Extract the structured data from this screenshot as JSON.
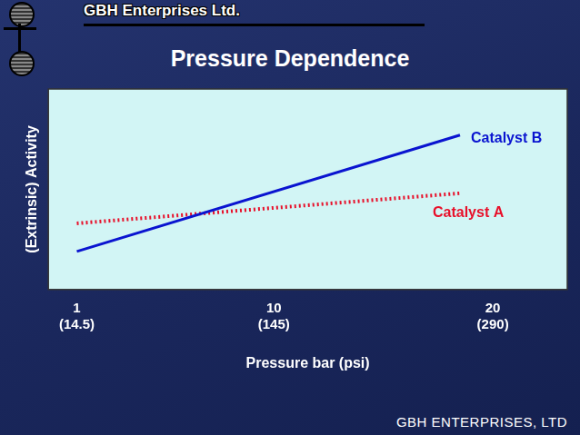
{
  "chart_data": {
    "type": "line",
    "header": "GBH Enterprises Ltd.",
    "title": "Pressure Dependence",
    "footer": "GBH ENTERPRISES, LTD",
    "x_label": "Pressure bar (psi)",
    "y_label": "(Extrinsic) Activity",
    "x": [
      1,
      18.5
    ],
    "series": [
      {
        "name": "Catalyst B",
        "color": "#0a14d0",
        "line_style": "solid",
        "values": [
          19,
          77
        ]
      },
      {
        "name": "Catalyst A",
        "color": "#e8102a",
        "line_style": "dotted",
        "values": [
          33,
          48
        ]
      }
    ],
    "xlim": [
      -0.3,
      23.4
    ],
    "xticks": [
      {
        "value": 1,
        "label": "1\n(14.5)"
      },
      {
        "value": 10,
        "label": "10\n(145)"
      },
      {
        "value": 20,
        "label": "20\n(290)"
      }
    ],
    "ylim": [
      0,
      100
    ],
    "tick_labels": "x",
    "grid": false
  }
}
